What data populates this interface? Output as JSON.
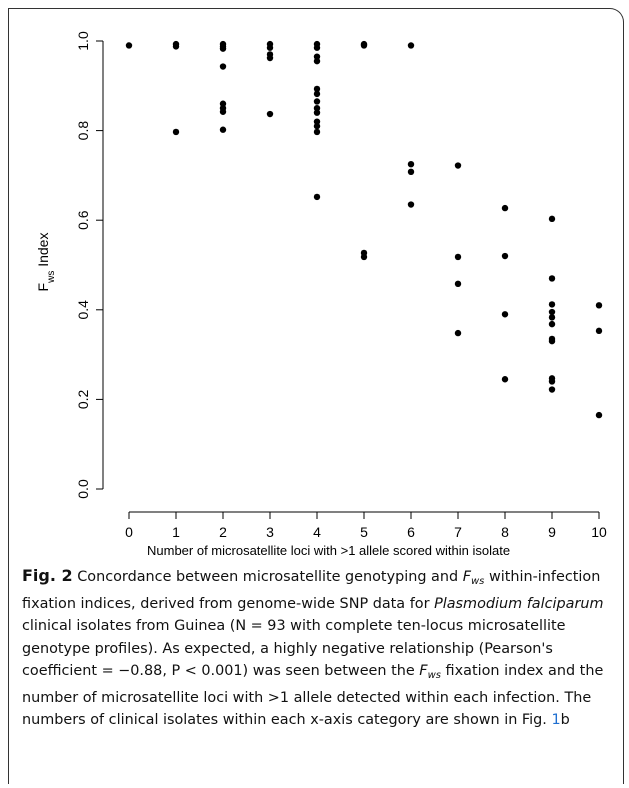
{
  "chart_data": {
    "type": "scatter",
    "xlabel": "Number of microsatellite loci with >1 allele scored within isolate",
    "ylabel": {
      "main": "F",
      "sub": "ws",
      "rest": " Index"
    },
    "xlim": [
      0,
      10
    ],
    "ylim": [
      0,
      1
    ],
    "xticks": [
      0,
      1,
      2,
      3,
      4,
      5,
      6,
      7,
      8,
      9,
      10
    ],
    "yticks": [
      0.0,
      0.2,
      0.4,
      0.6,
      0.8,
      1.0
    ],
    "ytick_labels": [
      "0.0",
      "0.2",
      "0.4",
      "0.6",
      "0.8",
      "1.0"
    ],
    "grid": false,
    "points": [
      {
        "x": 0,
        "y": 0.99
      },
      {
        "x": 1,
        "y": 0.993
      },
      {
        "x": 1,
        "y": 0.988
      },
      {
        "x": 1,
        "y": 0.797
      },
      {
        "x": 2,
        "y": 0.993
      },
      {
        "x": 2,
        "y": 0.988
      },
      {
        "x": 2,
        "y": 0.983
      },
      {
        "x": 2,
        "y": 0.943
      },
      {
        "x": 2,
        "y": 0.86
      },
      {
        "x": 2,
        "y": 0.85
      },
      {
        "x": 2,
        "y": 0.842
      },
      {
        "x": 2,
        "y": 0.802
      },
      {
        "x": 3,
        "y": 0.993
      },
      {
        "x": 3,
        "y": 0.985
      },
      {
        "x": 3,
        "y": 0.97
      },
      {
        "x": 3,
        "y": 0.962
      },
      {
        "x": 3,
        "y": 0.837
      },
      {
        "x": 4,
        "y": 0.993
      },
      {
        "x": 4,
        "y": 0.985
      },
      {
        "x": 4,
        "y": 0.965
      },
      {
        "x": 4,
        "y": 0.955
      },
      {
        "x": 4,
        "y": 0.893
      },
      {
        "x": 4,
        "y": 0.882
      },
      {
        "x": 4,
        "y": 0.865
      },
      {
        "x": 4,
        "y": 0.85
      },
      {
        "x": 4,
        "y": 0.84
      },
      {
        "x": 4,
        "y": 0.82
      },
      {
        "x": 4,
        "y": 0.81
      },
      {
        "x": 4,
        "y": 0.797
      },
      {
        "x": 4,
        "y": 0.652
      },
      {
        "x": 5,
        "y": 0.993
      },
      {
        "x": 5,
        "y": 0.99
      },
      {
        "x": 5,
        "y": 0.527
      },
      {
        "x": 5,
        "y": 0.518
      },
      {
        "x": 6,
        "y": 0.99
      },
      {
        "x": 6,
        "y": 0.725
      },
      {
        "x": 6,
        "y": 0.708
      },
      {
        "x": 6,
        "y": 0.635
      },
      {
        "x": 7,
        "y": 0.722
      },
      {
        "x": 7,
        "y": 0.518
      },
      {
        "x": 7,
        "y": 0.458
      },
      {
        "x": 7,
        "y": 0.348
      },
      {
        "x": 8,
        "y": 0.627
      },
      {
        "x": 8,
        "y": 0.52
      },
      {
        "x": 8,
        "y": 0.39
      },
      {
        "x": 8,
        "y": 0.245
      },
      {
        "x": 9,
        "y": 0.603
      },
      {
        "x": 9,
        "y": 0.47
      },
      {
        "x": 9,
        "y": 0.412
      },
      {
        "x": 9,
        "y": 0.395
      },
      {
        "x": 9,
        "y": 0.383
      },
      {
        "x": 9,
        "y": 0.368
      },
      {
        "x": 9,
        "y": 0.335
      },
      {
        "x": 9,
        "y": 0.33
      },
      {
        "x": 9,
        "y": 0.247
      },
      {
        "x": 9,
        "y": 0.24
      },
      {
        "x": 9,
        "y": 0.222
      },
      {
        "x": 10,
        "y": 0.41
      },
      {
        "x": 10,
        "y": 0.353
      },
      {
        "x": 10,
        "y": 0.165
      }
    ],
    "point_color": "#000000"
  },
  "caption": {
    "label": "Fig. 2",
    "part1": " Concordance between microsatellite genotyping and ",
    "fws_main": "F",
    "fws_sub": "ws",
    "part2": " within-infection fixation indices, derived from genome-wide SNP data for ",
    "species": "Plasmodium falciparum",
    "part3": " clinical isolates from Guinea (N = 93 with complete ten-locus microsatellite genotype profiles). As expected, a highly negative relationship (Pearson's coefficient = −0.88, P < 0.001) was seen between the ",
    "fws2_main": "F",
    "fws2_sub": "ws",
    "part4": " fixation index and the number of microsatellite loci with >1 allele detected within each infection. The numbers of clinical isolates within each x-axis category are shown in Fig. ",
    "fig_ref_number": "1",
    "fig_ref_letter": "b"
  }
}
